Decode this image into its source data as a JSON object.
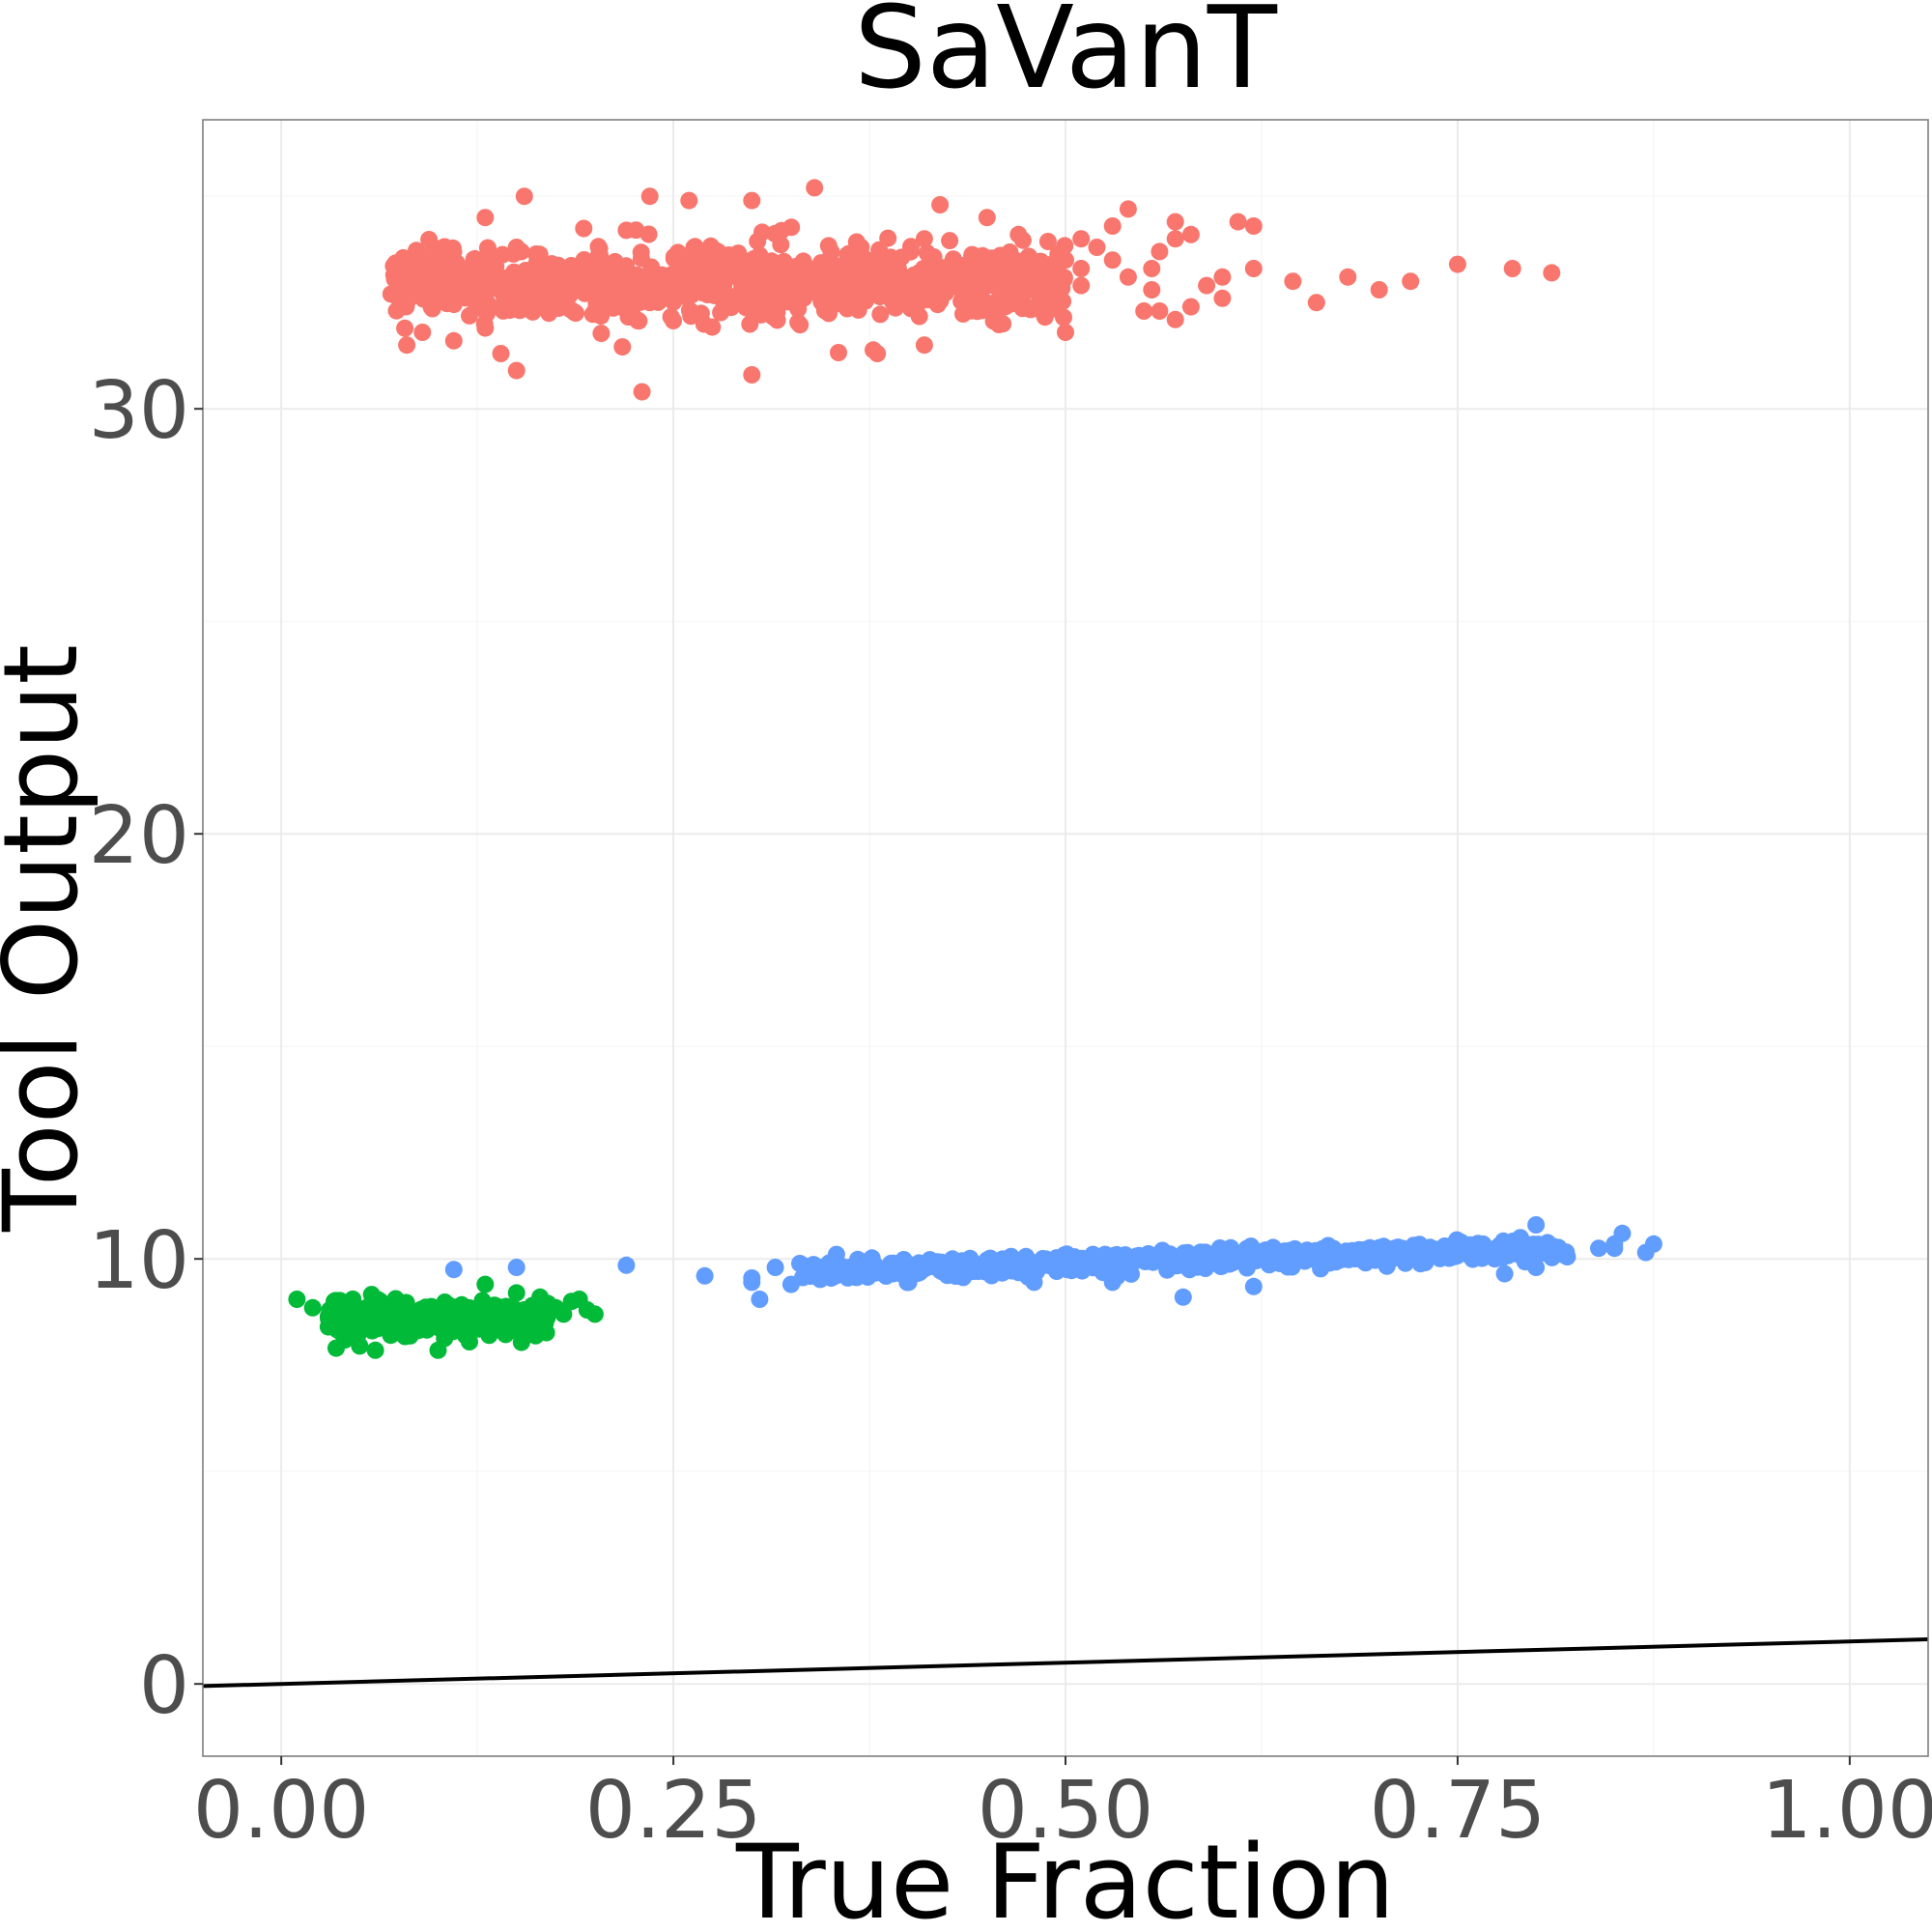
{
  "chart_data": {
    "type": "scatter",
    "title": "SaVanT",
    "xlabel": "True Fraction",
    "ylabel": "Tool Output",
    "xlim": [
      -0.05,
      1.05
    ],
    "ylim": [
      -1.7,
      36.8
    ],
    "x_ticks": [
      0.0,
      0.25,
      0.5,
      0.75,
      1.0
    ],
    "x_tick_labels": [
      "0.00",
      "0.25",
      "0.50",
      "0.75",
      "1.00"
    ],
    "y_ticks": [
      0,
      10,
      20,
      30
    ],
    "y_tick_labels": [
      "0",
      "10",
      "20",
      "30"
    ],
    "grid": true,
    "legend": "none",
    "reference_line": {
      "x": [
        -0.05,
        1.05
      ],
      "y": [
        -0.05,
        1.05
      ],
      "color": "#000000"
    },
    "series": [
      {
        "color": "#F8766D",
        "cluster": {
          "x_range": [
            0.07,
            0.5
          ],
          "y_center": 33.0,
          "y_spread": 0.8,
          "count": 900
        },
        "points": [
          [
            0.07,
            32.7
          ],
          [
            0.08,
            31.5
          ],
          [
            0.09,
            31.8
          ],
          [
            0.1,
            32.6
          ],
          [
            0.11,
            31.6
          ],
          [
            0.13,
            34.5
          ],
          [
            0.13,
            31.9
          ],
          [
            0.14,
            31.3
          ],
          [
            0.15,
            30.9
          ],
          [
            0.15,
            33.8
          ],
          [
            0.155,
            35.0
          ],
          [
            0.22,
            34.2
          ],
          [
            0.23,
            30.4
          ],
          [
            0.235,
            35.0
          ],
          [
            0.26,
            34.9
          ],
          [
            0.3,
            34.9
          ],
          [
            0.3,
            30.8
          ],
          [
            0.34,
            35.2
          ],
          [
            0.38,
            31.3
          ],
          [
            0.41,
            34.0
          ],
          [
            0.42,
            34.8
          ],
          [
            0.41,
            31.5
          ],
          [
            0.44,
            32.9
          ],
          [
            0.45,
            34.5
          ],
          [
            0.46,
            32.0
          ],
          [
            0.47,
            34.1
          ],
          [
            0.47,
            32.5
          ],
          [
            0.48,
            33.4
          ],
          [
            0.49,
            33.2
          ],
          [
            0.5,
            33.5
          ],
          [
            0.5,
            31.8
          ],
          [
            0.51,
            33.3
          ],
          [
            0.51,
            34.0
          ],
          [
            0.52,
            33.8
          ],
          [
            0.51,
            32.9
          ],
          [
            0.53,
            33.5
          ],
          [
            0.53,
            34.3
          ],
          [
            0.54,
            33.1
          ],
          [
            0.54,
            34.7
          ],
          [
            0.55,
            32.3
          ],
          [
            0.555,
            33.3
          ],
          [
            0.555,
            32.8
          ],
          [
            0.56,
            33.7
          ],
          [
            0.57,
            32.1
          ],
          [
            0.58,
            34.1
          ],
          [
            0.57,
            34.4
          ],
          [
            0.57,
            34.0
          ],
          [
            0.59,
            32.9
          ],
          [
            0.61,
            34.4
          ],
          [
            0.62,
            34.3
          ],
          [
            0.56,
            32.3
          ],
          [
            0.58,
            32.4
          ],
          [
            0.6,
            32.6
          ],
          [
            0.6,
            33.1
          ],
          [
            0.62,
            33.3
          ],
          [
            0.645,
            33.0
          ],
          [
            0.66,
            32.5
          ],
          [
            0.68,
            33.1
          ],
          [
            0.72,
            33.0
          ],
          [
            0.75,
            33.4
          ],
          [
            0.785,
            33.3
          ],
          [
            0.7,
            32.8
          ],
          [
            0.81,
            33.2
          ]
        ]
      },
      {
        "color": "#619CFF",
        "cluster": {
          "x_range": [
            0.33,
            0.82
          ],
          "y_center_at_xmin": 9.7,
          "y_center_at_xmax": 10.25,
          "y_spread": 0.22,
          "count": 700
        },
        "points": [
          [
            0.11,
            9.75
          ],
          [
            0.15,
            9.8
          ],
          [
            0.22,
            9.85
          ],
          [
            0.27,
            9.6
          ],
          [
            0.3,
            9.55
          ],
          [
            0.3,
            9.45
          ],
          [
            0.305,
            9.05
          ],
          [
            0.315,
            9.8
          ],
          [
            0.325,
            9.4
          ],
          [
            0.335,
            9.8
          ],
          [
            0.34,
            9.6
          ],
          [
            0.39,
            9.65
          ],
          [
            0.4,
            9.45
          ],
          [
            0.42,
            9.75
          ],
          [
            0.48,
            9.45
          ],
          [
            0.53,
            9.45
          ],
          [
            0.575,
            9.1
          ],
          [
            0.62,
            9.35
          ],
          [
            0.78,
            9.65
          ],
          [
            0.8,
            10.8
          ],
          [
            0.84,
            10.25
          ],
          [
            0.85,
            10.25
          ],
          [
            0.855,
            10.6
          ],
          [
            0.85,
            10.35
          ],
          [
            0.87,
            10.15
          ],
          [
            0.875,
            10.35
          ],
          [
            0.81,
            10.1
          ],
          [
            0.79,
            10.5
          ],
          [
            0.8,
            9.8
          ]
        ]
      },
      {
        "color": "#00BA38",
        "cluster": {
          "x_range": [
            0.03,
            0.17
          ],
          "y_center": 8.6,
          "y_spread": 0.35,
          "count": 400
        },
        "points": [
          [
            0.01,
            9.05
          ],
          [
            0.02,
            8.85
          ],
          [
            0.03,
            8.4
          ],
          [
            0.035,
            7.9
          ],
          [
            0.05,
            7.95
          ],
          [
            0.06,
            7.85
          ],
          [
            0.1,
            7.85
          ],
          [
            0.12,
            8.05
          ],
          [
            0.13,
            9.4
          ],
          [
            0.15,
            9.2
          ],
          [
            0.155,
            8.8
          ],
          [
            0.16,
            8.9
          ],
          [
            0.165,
            9.1
          ],
          [
            0.17,
            8.95
          ],
          [
            0.175,
            8.85
          ],
          [
            0.18,
            8.7
          ],
          [
            0.19,
            9.05
          ],
          [
            0.195,
            8.8
          ],
          [
            0.2,
            8.7
          ],
          [
            0.185,
            9.0
          ]
        ]
      }
    ]
  }
}
